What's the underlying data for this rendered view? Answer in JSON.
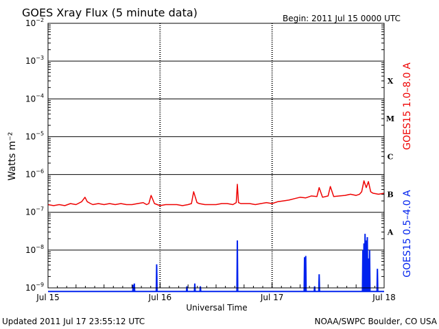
{
  "header": {
    "title": "GOES Xray Flux (5 minute data)",
    "begin": "Begin:  2011 Jul 15 0000 UTC"
  },
  "footer": {
    "updated": "Updated 2011 Jul 17 23:55:12 UTC",
    "source": "NOAA/SWPC Boulder, CO USA"
  },
  "chart_data": {
    "type": "line",
    "title": "GOES Xray Flux (5 minute data)",
    "xlabel": "Universal Time",
    "ylabel": "Watts m⁻²",
    "yscale": "log",
    "ylim": [
      1e-09,
      0.01
    ],
    "xlim": [
      0,
      3
    ],
    "x_unit": "days since 2011 Jul 15 0000 UTC",
    "x_ticks": [
      {
        "value": 0,
        "label": "Jul 15"
      },
      {
        "value": 1,
        "label": "Jul 16"
      },
      {
        "value": 2,
        "label": "Jul 17"
      },
      {
        "value": 3,
        "label": "Jul 18"
      }
    ],
    "y_ticks": [
      {
        "value": 0.01,
        "base": "10",
        "exp": "−2"
      },
      {
        "value": 0.001,
        "base": "10",
        "exp": "−3"
      },
      {
        "value": 0.0001,
        "base": "10",
        "exp": "−4"
      },
      {
        "value": 1e-05,
        "base": "10",
        "exp": "−5"
      },
      {
        "value": 1e-06,
        "base": "10",
        "exp": "−6"
      },
      {
        "value": 1e-07,
        "base": "10",
        "exp": "−7"
      },
      {
        "value": 1e-08,
        "base": "10",
        "exp": "−8"
      },
      {
        "value": 1e-09,
        "base": "10",
        "exp": "−9"
      }
    ],
    "flare_classes": [
      {
        "label": "X",
        "value": 0.0003
      },
      {
        "label": "M",
        "value": 3e-05
      },
      {
        "label": "C",
        "value": 3e-06
      },
      {
        "label": "B",
        "value": 3e-07
      },
      {
        "label": "A",
        "value": 3e-08
      }
    ],
    "grid": true,
    "series": [
      {
        "name": "GOES15 1.0–8.0 A",
        "color": "#ee0000",
        "x": [
          0.0,
          0.05,
          0.1,
          0.15,
          0.2,
          0.25,
          0.3,
          0.33,
          0.35,
          0.38,
          0.4,
          0.45,
          0.5,
          0.55,
          0.6,
          0.65,
          0.7,
          0.75,
          0.8,
          0.85,
          0.88,
          0.9,
          0.92,
          0.95,
          1.0,
          1.05,
          1.1,
          1.15,
          1.2,
          1.25,
          1.28,
          1.3,
          1.33,
          1.35,
          1.4,
          1.45,
          1.5,
          1.55,
          1.6,
          1.65,
          1.68,
          1.69,
          1.7,
          1.72,
          1.75,
          1.8,
          1.85,
          1.9,
          1.95,
          2.0,
          2.05,
          2.1,
          2.15,
          2.2,
          2.25,
          2.3,
          2.35,
          2.4,
          2.42,
          2.45,
          2.5,
          2.52,
          2.55,
          2.6,
          2.65,
          2.7,
          2.75,
          2.78,
          2.8,
          2.82,
          2.84,
          2.86,
          2.88,
          2.9,
          2.95,
          3.0
        ],
        "y": [
          1.6e-07,
          1.5e-07,
          1.6e-07,
          1.5e-07,
          1.7e-07,
          1.6e-07,
          1.9e-07,
          2.5e-07,
          1.9e-07,
          1.7e-07,
          1.6e-07,
          1.7e-07,
          1.6e-07,
          1.7e-07,
          1.6e-07,
          1.7e-07,
          1.6e-07,
          1.6e-07,
          1.7e-07,
          1.8e-07,
          1.6e-07,
          1.7e-07,
          2.8e-07,
          1.7e-07,
          1.5e-07,
          1.6e-07,
          1.6e-07,
          1.6e-07,
          1.5e-07,
          1.6e-07,
          1.7e-07,
          3.5e-07,
          1.8e-07,
          1.7e-07,
          1.6e-07,
          1.6e-07,
          1.6e-07,
          1.7e-07,
          1.7e-07,
          1.6e-07,
          1.8e-07,
          5.5e-07,
          1.8e-07,
          1.7e-07,
          1.7e-07,
          1.7e-07,
          1.6e-07,
          1.7e-07,
          1.8e-07,
          1.7e-07,
          1.9e-07,
          2e-07,
          2.1e-07,
          2.3e-07,
          2.5e-07,
          2.4e-07,
          2.7e-07,
          2.6e-07,
          4.5e-07,
          2.5e-07,
          2.7e-07,
          4.8e-07,
          2.6e-07,
          2.7e-07,
          2.8e-07,
          3e-07,
          2.8e-07,
          3e-07,
          3.5e-07,
          6.8e-07,
          4.5e-07,
          6.5e-07,
          3.5e-07,
          3.2e-07,
          3e-07,
          3.2e-07
        ]
      },
      {
        "name": "GOES15 0.5–4.0 A",
        "color": "#0022ee",
        "baseline": 8e-10,
        "spikes": [
          {
            "x": 0.76,
            "y": 1.2e-09
          },
          {
            "x": 0.77,
            "y": 1.3e-09
          },
          {
            "x": 0.97,
            "y": 4.2e-09
          },
          {
            "x": 1.24,
            "y": 1.1e-09
          },
          {
            "x": 1.31,
            "y": 1.3e-09
          },
          {
            "x": 1.36,
            "y": 1.1e-09
          },
          {
            "x": 1.69,
            "y": 1.8e-08
          },
          {
            "x": 2.29,
            "y": 6.5e-09
          },
          {
            "x": 2.3,
            "y": 7e-09
          },
          {
            "x": 2.38,
            "y": 1.1e-09
          },
          {
            "x": 2.42,
            "y": 2.3e-09
          },
          {
            "x": 2.81,
            "y": 1e-08
          },
          {
            "x": 2.82,
            "y": 1.5e-08
          },
          {
            "x": 2.83,
            "y": 2.7e-08
          },
          {
            "x": 2.84,
            "y": 1.8e-08
          },
          {
            "x": 2.85,
            "y": 2.2e-08
          },
          {
            "x": 2.86,
            "y": 6e-09
          },
          {
            "x": 2.87,
            "y": 1e-08
          },
          {
            "x": 2.94,
            "y": 3.2e-09
          }
        ]
      }
    ]
  }
}
